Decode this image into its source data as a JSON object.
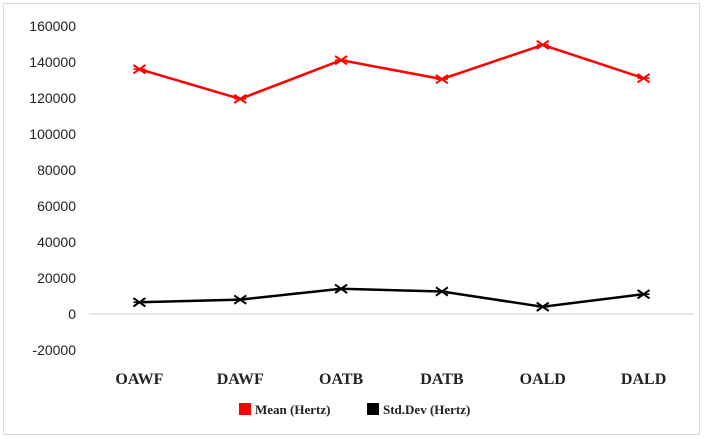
{
  "chart_data": {
    "type": "line",
    "title": "",
    "xlabel": "",
    "ylabel": "",
    "categories": [
      "OAWF",
      "DAWF",
      "OATB",
      "DATB",
      "OALD",
      "DALD"
    ],
    "ylim": [
      -20000,
      160000
    ],
    "yticks": [
      -20000,
      0,
      20000,
      40000,
      60000,
      80000,
      100000,
      120000,
      140000,
      160000
    ],
    "grid": false,
    "legend_position": "bottom",
    "series": [
      {
        "name": "Mean (Hertz)",
        "color": "#ff0000",
        "marker": "x-cross",
        "values": [
          136000,
          119500,
          141000,
          130500,
          149500,
          131000
        ]
      },
      {
        "name": "Std.Dev (Hertz)",
        "color": "#000000",
        "marker": "x-cross",
        "values": [
          6500,
          8000,
          14000,
          12500,
          4000,
          11000
        ]
      }
    ]
  }
}
